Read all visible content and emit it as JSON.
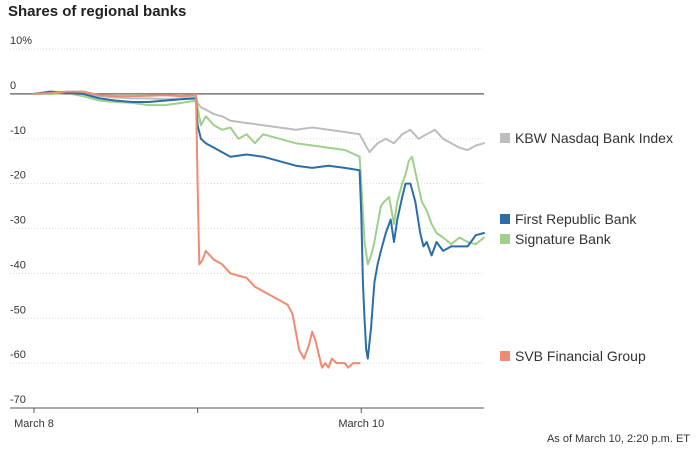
{
  "chart_data": {
    "type": "line",
    "title": "Shares of regional banks",
    "note": "As of March 10, 2:20 p.m. ET",
    "x_ticks": [
      {
        "label": "March 8",
        "value": 0
      },
      {
        "label": "",
        "value": 1
      },
      {
        "label": "March 10",
        "value": 2
      }
    ],
    "xlim": [
      0,
      2.75
    ],
    "y_ticks": [
      {
        "label": "10%",
        "value": 10
      },
      {
        "label": "0",
        "value": 0
      },
      {
        "label": "-10",
        "value": -10
      },
      {
        "label": "-20",
        "value": -20
      },
      {
        "label": "-30",
        "value": -30
      },
      {
        "label": "-40",
        "value": -40
      },
      {
        "label": "-50",
        "value": -50
      },
      {
        "label": "-60",
        "value": -60
      },
      {
        "label": "-70",
        "value": -70
      }
    ],
    "ylim": [
      -70,
      10
    ],
    "series": [
      {
        "name": "KBW Nasdaq Bank Index",
        "color": "#bdbdbd",
        "points": [
          [
            0,
            0
          ],
          [
            0.1,
            0.5
          ],
          [
            0.2,
            0.4
          ],
          [
            0.3,
            0
          ],
          [
            0.4,
            -0.5
          ],
          [
            0.5,
            -0.8
          ],
          [
            0.6,
            -1
          ],
          [
            0.7,
            -1
          ],
          [
            0.8,
            -1.2
          ],
          [
            0.9,
            -1
          ],
          [
            0.99,
            -0.5
          ],
          [
            1.0,
            -2
          ],
          [
            1.02,
            -3
          ],
          [
            1.05,
            -3.5
          ],
          [
            1.1,
            -4.5
          ],
          [
            1.15,
            -5
          ],
          [
            1.2,
            -6
          ],
          [
            1.3,
            -6.5
          ],
          [
            1.4,
            -7
          ],
          [
            1.5,
            -7.5
          ],
          [
            1.6,
            -8
          ],
          [
            1.7,
            -7.5
          ],
          [
            1.8,
            -8
          ],
          [
            1.9,
            -8.5
          ],
          [
            1.99,
            -9
          ],
          [
            2.02,
            -11
          ],
          [
            2.05,
            -13
          ],
          [
            2.1,
            -11
          ],
          [
            2.15,
            -10
          ],
          [
            2.2,
            -11
          ],
          [
            2.25,
            -9
          ],
          [
            2.3,
            -8
          ],
          [
            2.35,
            -10
          ],
          [
            2.4,
            -9
          ],
          [
            2.45,
            -8
          ],
          [
            2.5,
            -10
          ],
          [
            2.55,
            -11
          ],
          [
            2.6,
            -12
          ],
          [
            2.65,
            -12.5
          ],
          [
            2.7,
            -11.5
          ],
          [
            2.75,
            -11
          ]
        ]
      },
      {
        "name": "First Republic Bank",
        "color": "#2b6ea6",
        "points": [
          [
            0,
            0
          ],
          [
            0.1,
            0.5
          ],
          [
            0.2,
            0.2
          ],
          [
            0.3,
            0
          ],
          [
            0.4,
            -1
          ],
          [
            0.5,
            -1.5
          ],
          [
            0.6,
            -1.8
          ],
          [
            0.7,
            -1.8
          ],
          [
            0.8,
            -1.5
          ],
          [
            0.9,
            -1.2
          ],
          [
            0.99,
            -1
          ],
          [
            1.0,
            -7
          ],
          [
            1.02,
            -10
          ],
          [
            1.05,
            -11
          ],
          [
            1.1,
            -12
          ],
          [
            1.15,
            -13
          ],
          [
            1.2,
            -14
          ],
          [
            1.3,
            -13.5
          ],
          [
            1.4,
            -14
          ],
          [
            1.5,
            -15
          ],
          [
            1.6,
            -16
          ],
          [
            1.7,
            -16.5
          ],
          [
            1.8,
            -16
          ],
          [
            1.9,
            -16.5
          ],
          [
            1.99,
            -17
          ],
          [
            2.0,
            -27
          ],
          [
            2.01,
            -42
          ],
          [
            2.02,
            -50
          ],
          [
            2.03,
            -57
          ],
          [
            2.04,
            -59
          ],
          [
            2.06,
            -52
          ],
          [
            2.08,
            -42
          ],
          [
            2.1,
            -38
          ],
          [
            2.12,
            -35
          ],
          [
            2.15,
            -31
          ],
          [
            2.18,
            -28
          ],
          [
            2.2,
            -33
          ],
          [
            2.22,
            -28
          ],
          [
            2.25,
            -23
          ],
          [
            2.27,
            -20
          ],
          [
            2.3,
            -20
          ],
          [
            2.33,
            -24
          ],
          [
            2.36,
            -31
          ],
          [
            2.38,
            -34
          ],
          [
            2.4,
            -33
          ],
          [
            2.43,
            -36
          ],
          [
            2.46,
            -33
          ],
          [
            2.5,
            -35
          ],
          [
            2.55,
            -34
          ],
          [
            2.6,
            -34
          ],
          [
            2.65,
            -34
          ],
          [
            2.7,
            -31.5
          ],
          [
            2.75,
            -31
          ]
        ]
      },
      {
        "name": "Signature Bank",
        "color": "#9ed08a",
        "points": [
          [
            0,
            0
          ],
          [
            0.1,
            0
          ],
          [
            0.2,
            0.2
          ],
          [
            0.3,
            -0.5
          ],
          [
            0.4,
            -1.5
          ],
          [
            0.5,
            -1.8
          ],
          [
            0.6,
            -2
          ],
          [
            0.7,
            -2.5
          ],
          [
            0.8,
            -2.5
          ],
          [
            0.9,
            -2
          ],
          [
            0.99,
            -1.5
          ],
          [
            1.0,
            -3
          ],
          [
            1.02,
            -7
          ],
          [
            1.05,
            -5
          ],
          [
            1.1,
            -7
          ],
          [
            1.15,
            -8
          ],
          [
            1.2,
            -7.5
          ],
          [
            1.25,
            -10
          ],
          [
            1.3,
            -9
          ],
          [
            1.35,
            -11
          ],
          [
            1.4,
            -9
          ],
          [
            1.5,
            -10
          ],
          [
            1.6,
            -11
          ],
          [
            1.7,
            -11.5
          ],
          [
            1.8,
            -12
          ],
          [
            1.9,
            -12.5
          ],
          [
            1.99,
            -14
          ],
          [
            2.0,
            -20
          ],
          [
            2.02,
            -33
          ],
          [
            2.04,
            -38
          ],
          [
            2.06,
            -36
          ],
          [
            2.08,
            -33
          ],
          [
            2.1,
            -29
          ],
          [
            2.12,
            -25
          ],
          [
            2.14,
            -24
          ],
          [
            2.17,
            -23
          ],
          [
            2.2,
            -29
          ],
          [
            2.22,
            -24
          ],
          [
            2.25,
            -20
          ],
          [
            2.27,
            -18
          ],
          [
            2.29,
            -15
          ],
          [
            2.31,
            -14
          ],
          [
            2.34,
            -19
          ],
          [
            2.37,
            -24
          ],
          [
            2.4,
            -26
          ],
          [
            2.43,
            -29
          ],
          [
            2.46,
            -31
          ],
          [
            2.5,
            -32
          ],
          [
            2.55,
            -33.5
          ],
          [
            2.6,
            -32
          ],
          [
            2.65,
            -33
          ],
          [
            2.7,
            -33.5
          ],
          [
            2.75,
            -32
          ]
        ]
      },
      {
        "name": "SVB Financial Group",
        "color": "#ef8a73",
        "points": [
          [
            0,
            0
          ],
          [
            0.1,
            0.2
          ],
          [
            0.2,
            0.5
          ],
          [
            0.3,
            0.5
          ],
          [
            0.4,
            -0.3
          ],
          [
            0.5,
            -0.5
          ],
          [
            0.6,
            -0.5
          ],
          [
            0.7,
            -0.4
          ],
          [
            0.8,
            -0.3
          ],
          [
            0.9,
            -0.5
          ],
          [
            0.99,
            -0.2
          ],
          [
            1.0,
            -20
          ],
          [
            1.01,
            -38
          ],
          [
            1.03,
            -37
          ],
          [
            1.05,
            -35
          ],
          [
            1.1,
            -37
          ],
          [
            1.15,
            -38
          ],
          [
            1.2,
            -40
          ],
          [
            1.25,
            -40.5
          ],
          [
            1.3,
            -41
          ],
          [
            1.35,
            -43
          ],
          [
            1.4,
            -44
          ],
          [
            1.45,
            -45
          ],
          [
            1.5,
            -46
          ],
          [
            1.55,
            -47
          ],
          [
            1.58,
            -49
          ],
          [
            1.6,
            -53
          ],
          [
            1.62,
            -57
          ],
          [
            1.65,
            -59
          ],
          [
            1.68,
            -56
          ],
          [
            1.7,
            -53
          ],
          [
            1.72,
            -55
          ],
          [
            1.74,
            -58
          ],
          [
            1.76,
            -61
          ],
          [
            1.78,
            -60
          ],
          [
            1.8,
            -61
          ],
          [
            1.82,
            -59
          ],
          [
            1.85,
            -60
          ],
          [
            1.88,
            -60
          ],
          [
            1.9,
            -60
          ],
          [
            1.92,
            -61
          ],
          [
            1.95,
            -60
          ],
          [
            1.99,
            -60
          ]
        ]
      }
    ]
  },
  "legend": [
    {
      "label": "KBW Nasdaq Bank Index",
      "color": "#bdbdbd"
    },
    {
      "label": "First Republic Bank",
      "color": "#2b6ea6"
    },
    {
      "label": "Signature Bank",
      "color": "#9ed08a"
    },
    {
      "label": "SVB Financial Group",
      "color": "#ef8a73"
    }
  ]
}
